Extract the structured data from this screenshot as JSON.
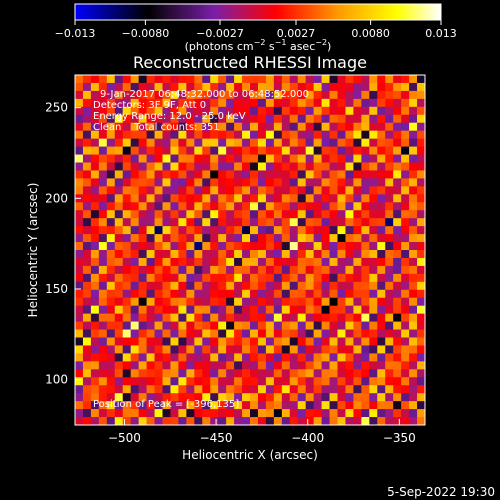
{
  "chart_data": {
    "type": "heatmap",
    "title": "Reconstructed RHESSI Image",
    "xlabel": "Heliocentric X (arcsec)",
    "ylabel": "Heliocentric Y (arcsec)",
    "xlim": [
      -527,
      -336
    ],
    "ylim": [
      75,
      268
    ],
    "x_ticks": [
      -500,
      -450,
      -400,
      -350
    ],
    "y_ticks": [
      100,
      150,
      200,
      250
    ],
    "x_tick_labels": [
      "−500",
      "−450",
      "−400",
      "−350"
    ],
    "y_tick_labels": [
      "100",
      "150",
      "200",
      "250"
    ],
    "colorbar": {
      "min": -0.013,
      "max": 0.013,
      "ticks": [
        -0.013,
        -0.008,
        -0.0027,
        0.0027,
        0.008,
        0.013
      ],
      "tick_labels": [
        "−0.013",
        "−0.0080",
        "−0.0027",
        "0.0027",
        "0.0080",
        "0.013"
      ],
      "unit_label": "(photons cm",
      "unit_sup1": "−2",
      "unit_mid": " s",
      "unit_sup2": "−1",
      "unit_mid2": " asec",
      "unit_sup3": "−2",
      "unit_end": ")",
      "colormap_stops": [
        "#0000ff",
        "#000000",
        "#7a1fa8",
        "#ff0000",
        "#ff9a00",
        "#ffff00",
        "#ffffff"
      ]
    },
    "annotations": [
      "9-Jan-2017 06:48:32.000 to 06:48:52.000",
      "Detectors: 3F 9F, Att 0",
      "Energy Range: 12.0 - 25.0 keV",
      "Clean    Total counts: 351"
    ],
    "peak_label": "Position of Peak = [-396,135]",
    "grid": false
  },
  "timestamp": "5-Sep-2022 19:30"
}
